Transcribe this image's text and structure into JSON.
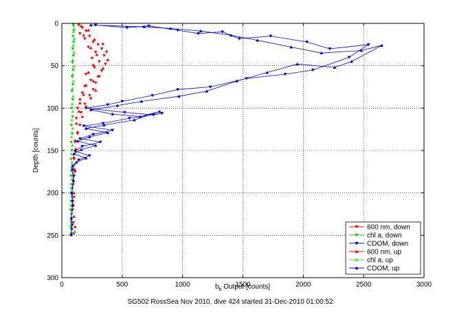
{
  "figure_caption": "SG502 RossSea Nov 2010, dive 424 started 31-Dec-2010 01:00:52",
  "chart_data": {
    "type": "scatter",
    "title": "",
    "xlabel_main": "b",
    "xlabel_sub": "b",
    "xlabel_rest": " Output [counts]",
    "ylabel": "Depth [counts]",
    "xlim": [
      0,
      3000
    ],
    "ylim": [
      0,
      300
    ],
    "y_reversed": true,
    "x_ticks": [
      0,
      500,
      1000,
      1500,
      2000,
      2500,
      3000
    ],
    "y_ticks": [
      0,
      50,
      100,
      150,
      200,
      250,
      300
    ],
    "grid": "dotted",
    "legend_position": "bottom-right",
    "series": [
      {
        "name": "600 nm, down",
        "color": "#ff0000",
        "marker": "triangle-down",
        "line": false,
        "points": [
          [
            140,
            2
          ],
          [
            170,
            5
          ],
          [
            200,
            9
          ],
          [
            150,
            12
          ],
          [
            230,
            15
          ],
          [
            190,
            18
          ],
          [
            260,
            22
          ],
          [
            300,
            25
          ],
          [
            220,
            28
          ],
          [
            330,
            30
          ],
          [
            280,
            34
          ],
          [
            350,
            38
          ],
          [
            250,
            41
          ],
          [
            310,
            45
          ],
          [
            360,
            48
          ],
          [
            270,
            52
          ],
          [
            330,
            56
          ],
          [
            200,
            60
          ],
          [
            300,
            63
          ],
          [
            240,
            67
          ],
          [
            280,
            70
          ],
          [
            190,
            74
          ],
          [
            260,
            78
          ],
          [
            170,
            82
          ],
          [
            230,
            85
          ],
          [
            150,
            90
          ],
          [
            190,
            95
          ],
          [
            130,
            100
          ],
          [
            160,
            105
          ],
          [
            120,
            112
          ],
          [
            150,
            120
          ],
          [
            130,
            130
          ],
          [
            110,
            140
          ],
          [
            120,
            150
          ],
          [
            100,
            160
          ],
          [
            110,
            175
          ],
          [
            95,
            190
          ],
          [
            100,
            205
          ],
          [
            90,
            220
          ],
          [
            95,
            235
          ],
          [
            100,
            248
          ]
        ]
      },
      {
        "name": "chl a, down",
        "color": "#00cc00",
        "marker": "triangle-down",
        "line": false,
        "points": [
          [
            95,
            2
          ],
          [
            100,
            8
          ],
          [
            92,
            15
          ],
          [
            98,
            22
          ],
          [
            90,
            30
          ],
          [
            96,
            38
          ],
          [
            88,
            46
          ],
          [
            94,
            55
          ],
          [
            86,
            63
          ],
          [
            92,
            72
          ],
          [
            84,
            80
          ],
          [
            90,
            90
          ],
          [
            82,
            100
          ],
          [
            88,
            110
          ],
          [
            80,
            120
          ],
          [
            86,
            130
          ],
          [
            78,
            140
          ],
          [
            84,
            150
          ],
          [
            76,
            160
          ],
          [
            82,
            170
          ],
          [
            75,
            180
          ],
          [
            80,
            190
          ],
          [
            74,
            200
          ],
          [
            78,
            210
          ],
          [
            72,
            220
          ],
          [
            77,
            230
          ],
          [
            74,
            240
          ],
          [
            80,
            248
          ]
        ]
      },
      {
        "name": "CDOM, down",
        "color": "#0000cc",
        "marker": "triangle-down",
        "line": true,
        "points": [
          [
            280,
            2
          ],
          [
            540,
            5
          ],
          [
            720,
            3
          ],
          [
            960,
            8
          ],
          [
            1130,
            12
          ],
          [
            1330,
            10
          ],
          [
            1470,
            18
          ],
          [
            1730,
            15
          ],
          [
            2030,
            22
          ],
          [
            2220,
            30
          ],
          [
            2540,
            25
          ],
          [
            2380,
            40
          ],
          [
            2080,
            55
          ],
          [
            1850,
            60
          ],
          [
            1530,
            65
          ],
          [
            1230,
            75
          ],
          [
            960,
            78
          ],
          [
            750,
            85
          ],
          [
            500,
            92
          ],
          [
            380,
            96
          ],
          [
            200,
            100
          ],
          [
            520,
            105
          ],
          [
            760,
            108
          ],
          [
            830,
            106
          ],
          [
            560,
            112
          ],
          [
            340,
            118
          ],
          [
            180,
            121
          ],
          [
            420,
            126
          ],
          [
            260,
            131
          ],
          [
            150,
            136
          ],
          [
            320,
            140
          ],
          [
            170,
            145
          ],
          [
            110,
            151
          ],
          [
            230,
            156
          ],
          [
            140,
            161
          ],
          [
            90,
            168
          ],
          [
            100,
            180
          ],
          [
            85,
            195
          ],
          [
            90,
            210
          ],
          [
            80,
            225
          ],
          [
            85,
            238
          ],
          [
            78,
            250
          ]
        ]
      },
      {
        "name": "600 nm, up",
        "color": "#ff0000",
        "marker": "triangle-up",
        "line": false,
        "points": [
          [
            160,
            3
          ],
          [
            220,
            8
          ],
          [
            180,
            14
          ],
          [
            270,
            19
          ],
          [
            340,
            24
          ],
          [
            240,
            29
          ],
          [
            370,
            33
          ],
          [
            290,
            37
          ],
          [
            380,
            43
          ],
          [
            260,
            49
          ],
          [
            340,
            53
          ],
          [
            220,
            58
          ],
          [
            310,
            62
          ],
          [
            260,
            68
          ],
          [
            200,
            73
          ],
          [
            280,
            79
          ],
          [
            180,
            84
          ],
          [
            240,
            88
          ],
          [
            150,
            94
          ],
          [
            200,
            98
          ],
          [
            140,
            104
          ],
          [
            170,
            110
          ],
          [
            120,
            118
          ],
          [
            130,
            128
          ],
          [
            110,
            138
          ],
          [
            115,
            148
          ],
          [
            100,
            158
          ],
          [
            105,
            172
          ],
          [
            98,
            186
          ],
          [
            100,
            200
          ],
          [
            95,
            214
          ],
          [
            100,
            228
          ],
          [
            110,
            240
          ],
          [
            105,
            246
          ]
        ]
      },
      {
        "name": "chl a, up",
        "color": "#33ee33",
        "marker": "triangle-up",
        "line": false,
        "points": [
          [
            100,
            3
          ],
          [
            96,
            10
          ],
          [
            102,
            18
          ],
          [
            94,
            26
          ],
          [
            99,
            34
          ],
          [
            91,
            43
          ],
          [
            97,
            51
          ],
          [
            89,
            60
          ],
          [
            95,
            68
          ],
          [
            87,
            77
          ],
          [
            93,
            86
          ],
          [
            85,
            95
          ],
          [
            91,
            104
          ],
          [
            83,
            114
          ],
          [
            89,
            124
          ],
          [
            81,
            134
          ],
          [
            87,
            144
          ],
          [
            79,
            154
          ],
          [
            85,
            164
          ],
          [
            77,
            174
          ],
          [
            83,
            184
          ],
          [
            76,
            194
          ],
          [
            81,
            204
          ],
          [
            75,
            214
          ],
          [
            79,
            224
          ],
          [
            74,
            234
          ],
          [
            78,
            242
          ],
          [
            108,
            246
          ]
        ]
      },
      {
        "name": "CDOM, up",
        "color": "#0000cc",
        "marker": "triangle-up",
        "line": true,
        "points": [
          [
            240,
            2
          ],
          [
            680,
            4
          ],
          [
            900,
            6
          ],
          [
            1150,
            9
          ],
          [
            1400,
            14
          ],
          [
            1620,
            20
          ],
          [
            1900,
            28
          ],
          [
            2150,
            35
          ],
          [
            2480,
            32
          ],
          [
            2650,
            26
          ],
          [
            2400,
            45
          ],
          [
            2260,
            52
          ],
          [
            1950,
            48
          ],
          [
            1700,
            58
          ],
          [
            1450,
            68
          ],
          [
            1200,
            80
          ],
          [
            970,
            86
          ],
          [
            660,
            92
          ],
          [
            460,
            97
          ],
          [
            240,
            102
          ],
          [
            420,
            107
          ],
          [
            650,
            110
          ],
          [
            810,
            104
          ],
          [
            600,
            114
          ],
          [
            350,
            120
          ],
          [
            200,
            124
          ],
          [
            380,
            129
          ],
          [
            230,
            134
          ],
          [
            130,
            139
          ],
          [
            280,
            144
          ],
          [
            160,
            149
          ],
          [
            100,
            154
          ],
          [
            200,
            159
          ],
          [
            120,
            164
          ],
          [
            85,
            172
          ],
          [
            95,
            185
          ],
          [
            82,
            200
          ],
          [
            88,
            215
          ],
          [
            78,
            230
          ],
          [
            82,
            242
          ],
          [
            76,
            249
          ]
        ]
      }
    ]
  }
}
